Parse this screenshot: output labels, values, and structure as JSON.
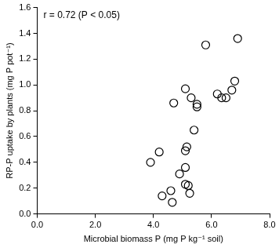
{
  "chart_data": {
    "type": "scatter",
    "annotation": "r = 0.72 (P < 0.05)",
    "x_label": "Microbial biomass P (mg P kg⁻¹ soil)",
    "y_label": "RP-P uptake by plants (mg P pot⁻¹)",
    "color": "#000000",
    "marker": "circle_open",
    "grid": false,
    "x": [
      6.9,
      5.8,
      6.8,
      6.7,
      6.2,
      6.35,
      6.5,
      5.1,
      5.3,
      4.7,
      5.5,
      5.5,
      5.4,
      5.15,
      5.1,
      4.2,
      3.9,
      5.1,
      4.9,
      4.3,
      4.6,
      4.65,
      5.1,
      5.2,
      5.25
    ],
    "values": [
      1.36,
      1.31,
      1.03,
      0.96,
      0.93,
      0.9,
      0.9,
      0.97,
      0.9,
      0.86,
      0.85,
      0.83,
      0.65,
      0.52,
      0.49,
      0.48,
      0.4,
      0.36,
      0.31,
      0.14,
      0.18,
      0.09,
      0.23,
      0.22,
      0.16
    ],
    "xlim": [
      0,
      8
    ],
    "xticks": [
      {
        "value": 0,
        "label": "0.0"
      },
      {
        "value": 2,
        "label": "2.0"
      },
      {
        "value": 4,
        "label": "4.0"
      },
      {
        "value": 6,
        "label": "6.0"
      },
      {
        "value": 8,
        "label": "8.0"
      }
    ],
    "ylim": [
      0,
      1.6
    ],
    "yticks": [
      {
        "value": 0,
        "label": "0.0"
      },
      0.2,
      0.4,
      0.6,
      0.8,
      {
        "value": 1,
        "label": "1.0"
      },
      1.2,
      1.4,
      1.6
    ]
  }
}
